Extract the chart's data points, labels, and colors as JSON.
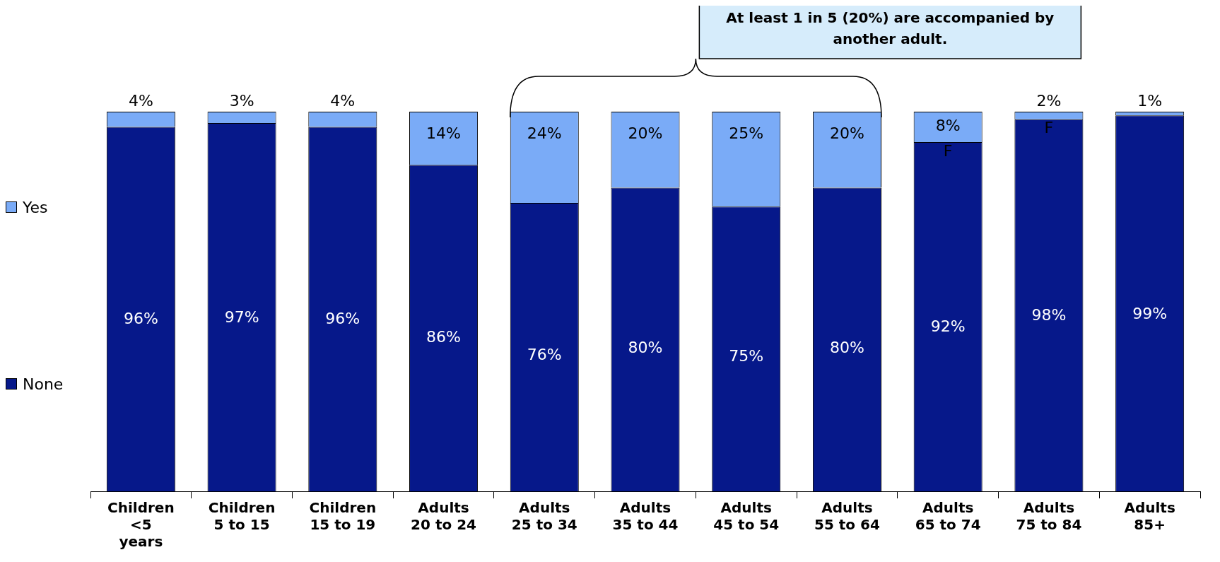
{
  "chart_data": {
    "type": "bar",
    "stacked": true,
    "legend": "left",
    "grid": false,
    "categories": [
      "Children <5 years",
      "Children 5 to 15",
      "Children 15 to 19",
      "Adults 20 to 24",
      "Adults 25 to 34",
      "Adults 35 to 44",
      "Adults 45 to 54",
      "Adults 55 to 64",
      "Adults 65 to 74",
      "Adults 75 to 84",
      "Adults 85+"
    ],
    "series": [
      {
        "name": "None",
        "color": "#06188a",
        "values": [
          96,
          97,
          96,
          86,
          76,
          80,
          75,
          80,
          92,
          98,
          99
        ],
        "value_labels": [
          "96%",
          "97%",
          "96%",
          "86%",
          "76%",
          "80%",
          "75%",
          "80%",
          "92%",
          "98%",
          "99%"
        ]
      },
      {
        "name": "Yes",
        "color": "#7aabf7",
        "values": [
          4,
          3,
          4,
          14,
          24,
          20,
          25,
          20,
          8,
          2,
          1
        ],
        "value_labels": [
          "4%",
          "3%",
          "4%",
          "14%",
          "24%",
          "20%",
          "25%",
          "20%",
          "8%",
          "2%",
          "1%"
        ]
      }
    ],
    "annotations": [
      "At least 1 in 5 (20%) are accompanied by another adult.",
      "F",
      "F"
    ]
  }
}
